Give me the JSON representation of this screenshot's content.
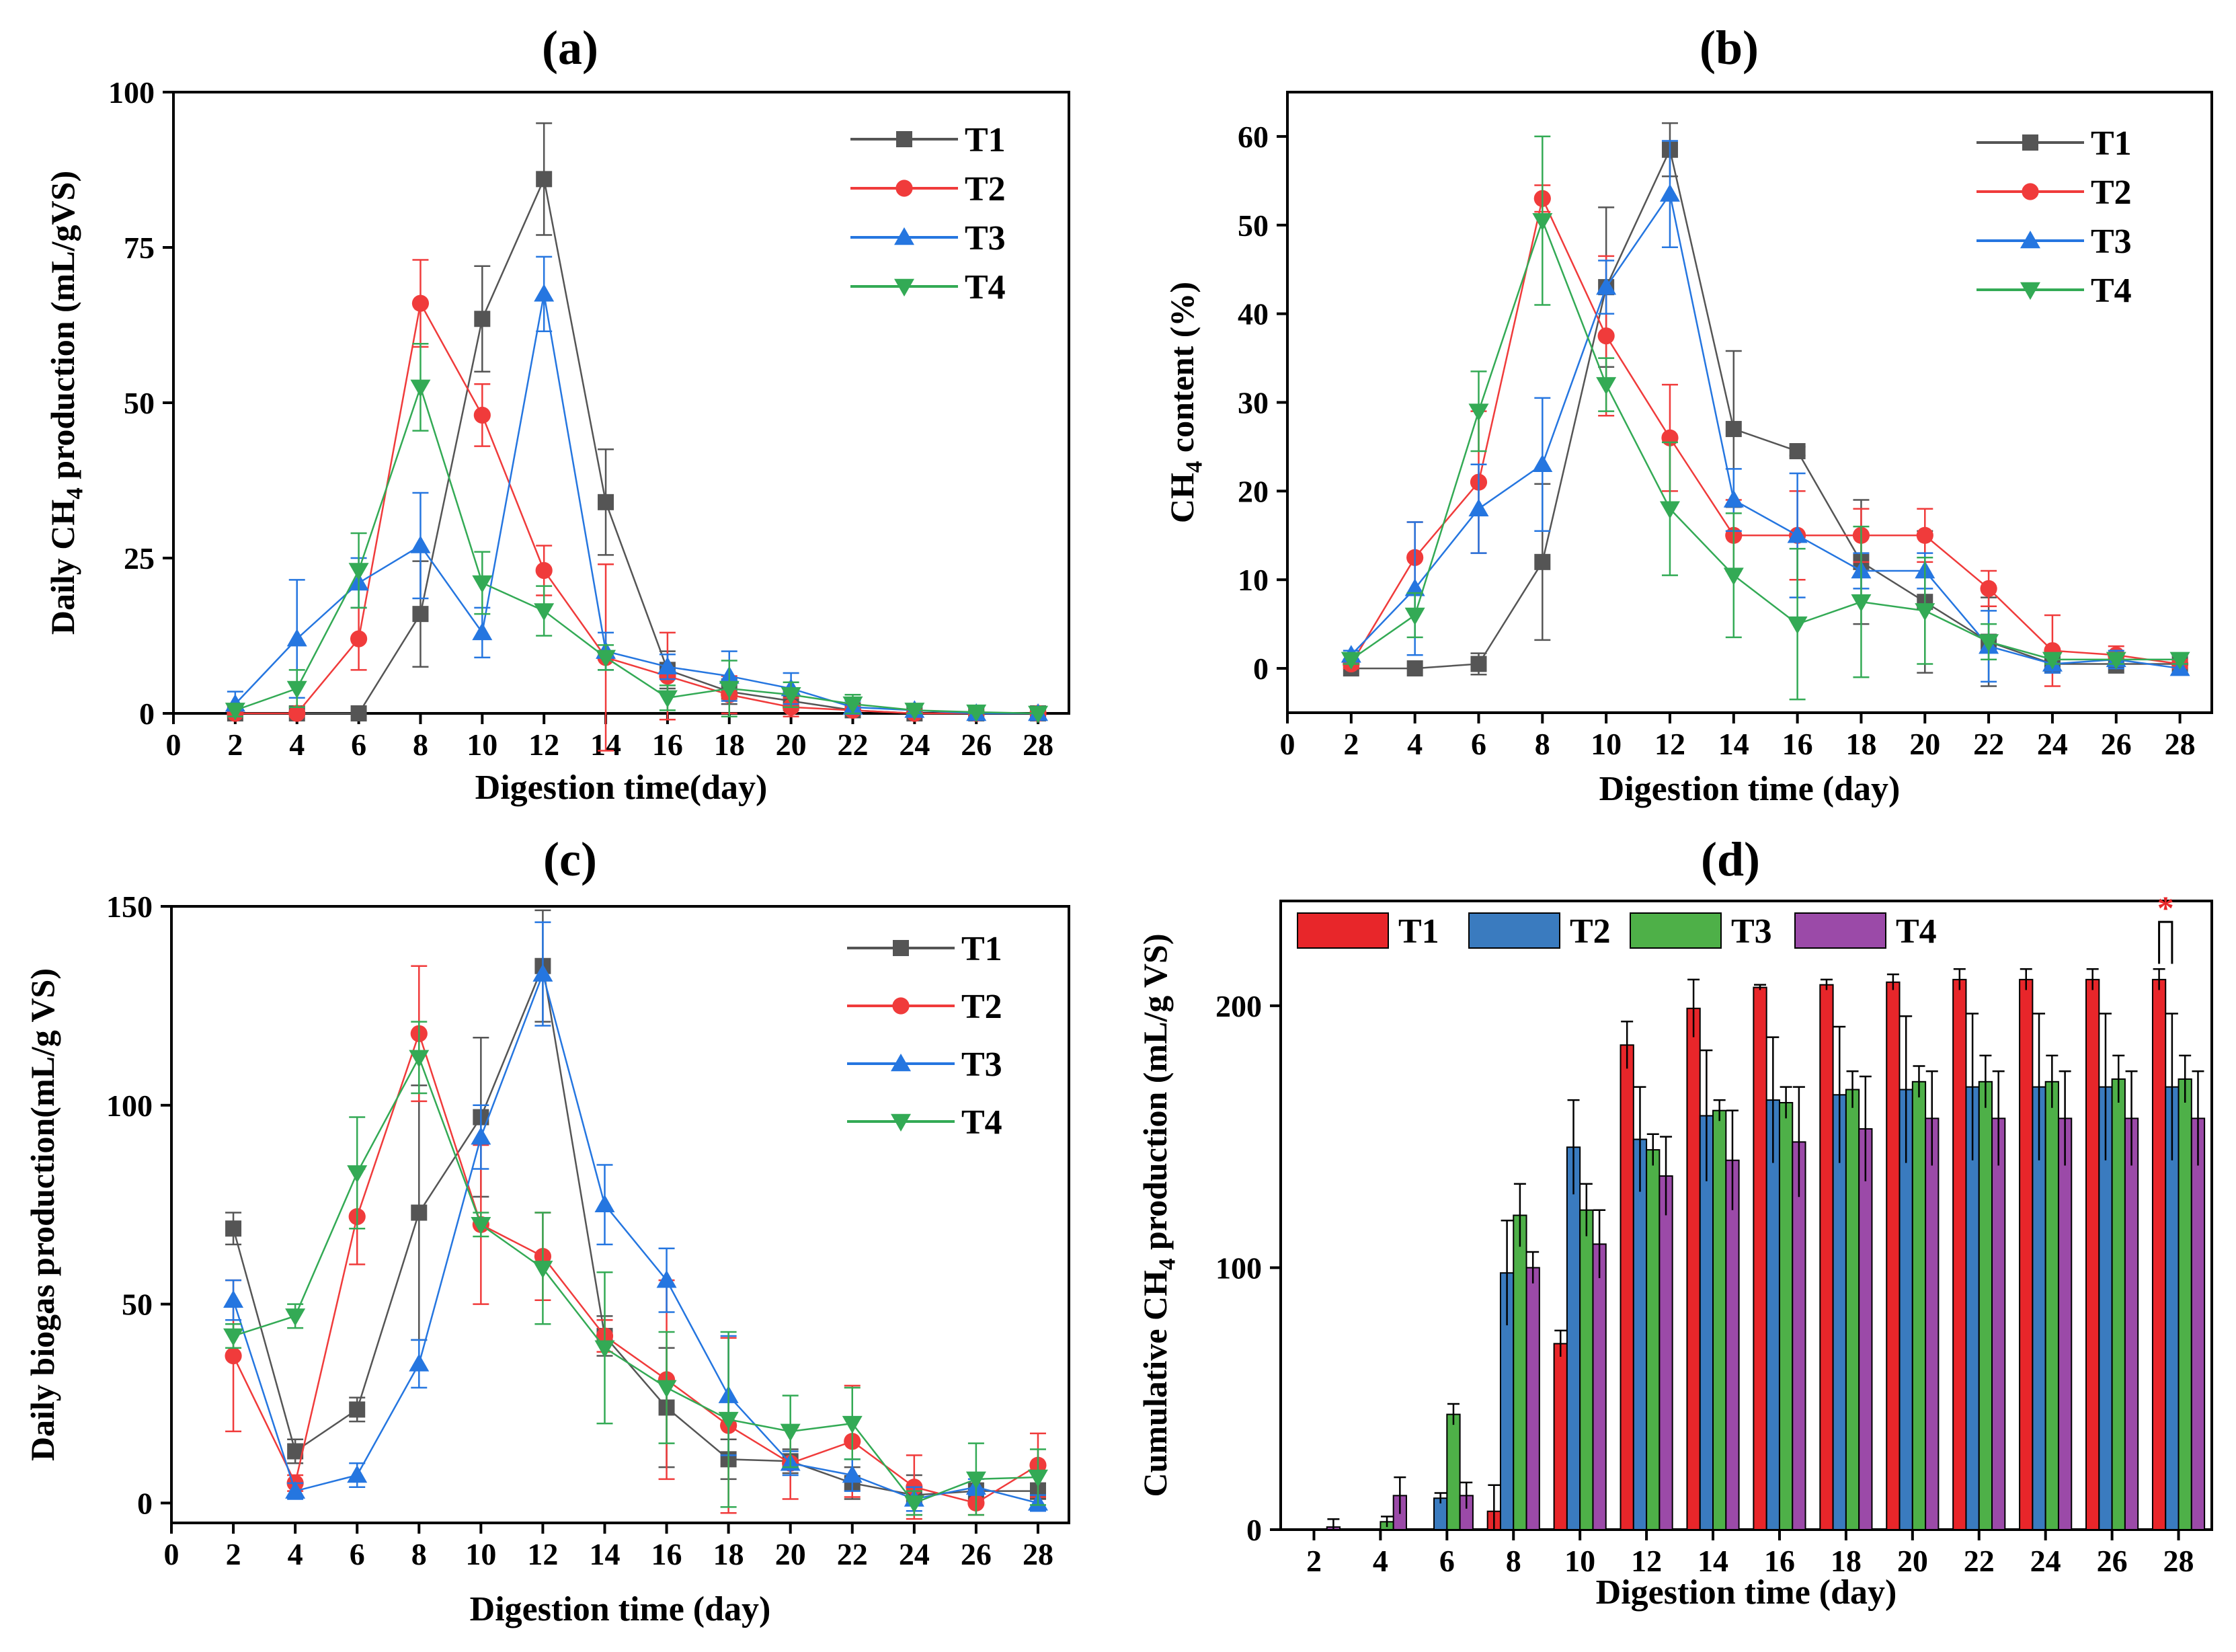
{
  "colors": {
    "T1": "#555555",
    "T2": "#f03b3b",
    "T3": "#2576e0",
    "T4": "#33aa55",
    "bar_T1": "#e8262a",
    "bar_T2": "#3a7bbf",
    "bar_T3": "#4eb048",
    "bar_T4": "#9b4aa8",
    "significance": "#e8262a"
  },
  "chart_data": [
    {
      "id": "a",
      "panel_label": "(a)",
      "type": "line",
      "xlabel": "Digestion time(day)",
      "ylabel": "Daily CH4 production (mL/gVS)",
      "xlim": [
        0,
        29
      ],
      "ylim": [
        0,
        100
      ],
      "xticks": [
        0,
        2,
        4,
        6,
        8,
        10,
        12,
        14,
        16,
        18,
        20,
        22,
        24,
        26,
        28
      ],
      "yticks": [
        0,
        25,
        50,
        75,
        100
      ],
      "legend_position": "top-right",
      "x": [
        2,
        4,
        6,
        8,
        10,
        12,
        14,
        16,
        18,
        20,
        22,
        24,
        26,
        28
      ],
      "series": [
        {
          "name": "T1",
          "marker": "square",
          "values": [
            0,
            0,
            0,
            16,
            63.5,
            86,
            34,
            7,
            3.5,
            2,
            0.5,
            0,
            0,
            0
          ],
          "errors": [
            0,
            0,
            0,
            8.5,
            8.5,
            9,
            8.5,
            3,
            2,
            1.5,
            0.5,
            0,
            0,
            0
          ]
        },
        {
          "name": "T2",
          "marker": "circle",
          "values": [
            0,
            0,
            12,
            66,
            48,
            23,
            9,
            6,
            3,
            1,
            0.5,
            0,
            0,
            0
          ],
          "errors": [
            0,
            0,
            5,
            7,
            5,
            4,
            15,
            7,
            3,
            1.5,
            0.5,
            0,
            0,
            0
          ]
        },
        {
          "name": "T3",
          "marker": "triangle-up",
          "values": [
            1.5,
            12,
            21,
            27,
            13,
            67.5,
            10,
            7.5,
            6,
            4,
            1,
            0.5,
            0,
            0
          ],
          "errors": [
            2,
            9.5,
            4,
            8.5,
            4,
            6,
            3,
            2,
            4,
            2.5,
            1,
            0.5,
            0,
            0
          ]
        },
        {
          "name": "T4",
          "marker": "triangle-down",
          "values": [
            0.5,
            4,
            23,
            52.5,
            21,
            16.5,
            9,
            2.5,
            4,
            3,
            1.5,
            0.5,
            0.2,
            0
          ],
          "errors": [
            1,
            3,
            6,
            7,
            5,
            4,
            2,
            2,
            4.5,
            2,
            1.5,
            0.5,
            0.2,
            0
          ]
        }
      ]
    },
    {
      "id": "b",
      "panel_label": "(b)",
      "type": "line",
      "xlabel": "Digestion time (day)",
      "ylabel": "CH4 content (%)",
      "xlim": [
        0,
        29
      ],
      "ylim": [
        -5,
        65
      ],
      "xticks": [
        0,
        2,
        4,
        6,
        8,
        10,
        12,
        14,
        16,
        18,
        20,
        22,
        24,
        26,
        28
      ],
      "yticks": [
        0,
        10,
        20,
        30,
        40,
        50,
        60
      ],
      "legend_position": "top-right",
      "x": [
        2,
        4,
        6,
        8,
        10,
        12,
        14,
        16,
        18,
        20,
        22,
        24,
        26,
        28
      ],
      "series": [
        {
          "name": "T1",
          "marker": "square",
          "values": [
            0,
            0,
            0.5,
            12,
            43,
            58.5,
            27,
            24.5,
            12,
            7.5,
            3,
            0.5,
            0.5,
            0.5
          ],
          "errors": [
            0,
            0,
            1.2,
            8.8,
            9,
            3,
            8.8,
            0.5,
            7,
            8,
            5,
            1,
            1,
            0.5
          ]
        },
        {
          "name": "T2",
          "marker": "circle",
          "values": [
            0.5,
            12.5,
            21,
            53,
            37.5,
            26,
            15,
            15,
            15,
            15,
            9,
            2,
            1.5,
            0.5
          ],
          "errors": [
            0.5,
            4,
            8,
            1.5,
            9,
            6,
            4,
            5,
            3,
            3,
            2,
            4,
            1,
            0.5
          ]
        },
        {
          "name": "T3",
          "marker": "triangle-up",
          "values": [
            1.5,
            9,
            18,
            23,
            43,
            53.5,
            19,
            15,
            11,
            11,
            2.5,
            0.5,
            1,
            0
          ],
          "errors": [
            0.5,
            7.5,
            5,
            7.5,
            3,
            6,
            3.5,
            7,
            2,
            2,
            4,
            1,
            1,
            0.5
          ]
        },
        {
          "name": "T4",
          "marker": "triangle-down",
          "values": [
            1,
            6,
            29,
            50.5,
            32,
            18,
            10.5,
            5,
            7.5,
            6.5,
            3,
            1,
            1,
            1
          ],
          "errors": [
            0.5,
            2.5,
            4.5,
            9.5,
            3,
            7.5,
            7,
            8.5,
            8.5,
            6,
            2,
            0.5,
            0.5,
            0.5
          ]
        }
      ]
    },
    {
      "id": "c",
      "panel_label": "(c)",
      "type": "line",
      "xlabel": "Digestion time (day)",
      "ylabel": "Daily biogas production(mL/g VS)",
      "xlim": [
        0,
        29
      ],
      "ylim": [
        -5,
        150
      ],
      "xticks": [
        0,
        2,
        4,
        6,
        8,
        10,
        12,
        14,
        16,
        18,
        20,
        22,
        24,
        26,
        28
      ],
      "yticks": [
        0,
        50,
        100,
        150
      ],
      "legend_position": "top-right",
      "x": [
        2,
        4,
        6,
        8,
        10,
        12,
        14,
        16,
        18,
        20,
        22,
        24,
        26,
        28
      ],
      "series": [
        {
          "name": "T1",
          "marker": "square",
          "values": [
            69,
            13,
            23.5,
            73,
            97,
            135,
            42,
            24,
            11,
            10.5,
            5,
            2,
            3,
            3
          ],
          "errors": [
            4,
            3,
            3,
            32,
            20,
            14,
            5,
            15,
            5,
            3,
            4,
            5,
            2,
            2
          ]
        },
        {
          "name": "T2",
          "marker": "circle",
          "values": [
            37,
            5,
            72,
            118,
            70,
            62,
            42,
            31,
            19.5,
            10,
            15.5,
            4,
            0,
            9.5
          ],
          "errors": [
            19,
            2,
            12,
            17,
            20,
            11,
            4,
            25,
            22,
            9,
            14,
            8,
            3,
            8
          ]
        },
        {
          "name": "T3",
          "marker": "triangle-up",
          "values": [
            51,
            3,
            7,
            35,
            92,
            133,
            75,
            56,
            27,
            10,
            7,
            1,
            4,
            0
          ],
          "errors": [
            5,
            2,
            3,
            6,
            8,
            13,
            10,
            8,
            15,
            3,
            4,
            3,
            2,
            2
          ]
        },
        {
          "name": "T4",
          "marker": "triangle-down",
          "values": [
            42,
            47,
            83,
            112,
            70,
            59,
            39,
            29,
            21,
            18,
            20,
            0,
            6,
            6.5
          ],
          "errors": [
            3,
            3,
            14,
            9,
            3,
            14,
            19,
            14,
            22,
            9,
            9,
            3,
            9,
            7
          ]
        }
      ]
    },
    {
      "id": "d",
      "panel_label": "(d)",
      "type": "bar",
      "xlabel": "Digestion time (day)",
      "ylabel": "Cumulative CH4 production (mL/g VS)",
      "ylim": [
        0,
        240
      ],
      "yticks": [
        0,
        100,
        200
      ],
      "legend_position": "top",
      "categories": [
        "2",
        "4",
        "6",
        "8",
        "10",
        "12",
        "14",
        "16",
        "18",
        "20",
        "22",
        "24",
        "26",
        "28"
      ],
      "annotation": {
        "text": "*",
        "category": "28"
      },
      "series": [
        {
          "name": "T1",
          "values": [
            0,
            0,
            0,
            7,
            71,
            185,
            199,
            207,
            208,
            209,
            210,
            210,
            210,
            210
          ],
          "errors": [
            0,
            0,
            0,
            10,
            5,
            9,
            11,
            1,
            2,
            3,
            4,
            4,
            4,
            4
          ]
        },
        {
          "name": "T2",
          "values": [
            0,
            0,
            12,
            98,
            146,
            149,
            158,
            164,
            166,
            168,
            169,
            169,
            169,
            169
          ],
          "errors": [
            0,
            0,
            2,
            20,
            18,
            20,
            25,
            24,
            26,
            28,
            28,
            28,
            28,
            28
          ]
        },
        {
          "name": "T3",
          "values": [
            0,
            3,
            44,
            120,
            122,
            145,
            160,
            163,
            168,
            171,
            171,
            171,
            172,
            172
          ],
          "errors": [
            0,
            2,
            4,
            12,
            10,
            6,
            4,
            6,
            7,
            6,
            10,
            10,
            9,
            9
          ]
        },
        {
          "name": "T4",
          "values": [
            1,
            13,
            13,
            100,
            109,
            135,
            141,
            148,
            153,
            157,
            157,
            157,
            157,
            157
          ],
          "errors": [
            3,
            7,
            5,
            6,
            13,
            15,
            19,
            21,
            20,
            18,
            18,
            18,
            18,
            18
          ]
        }
      ]
    }
  ]
}
